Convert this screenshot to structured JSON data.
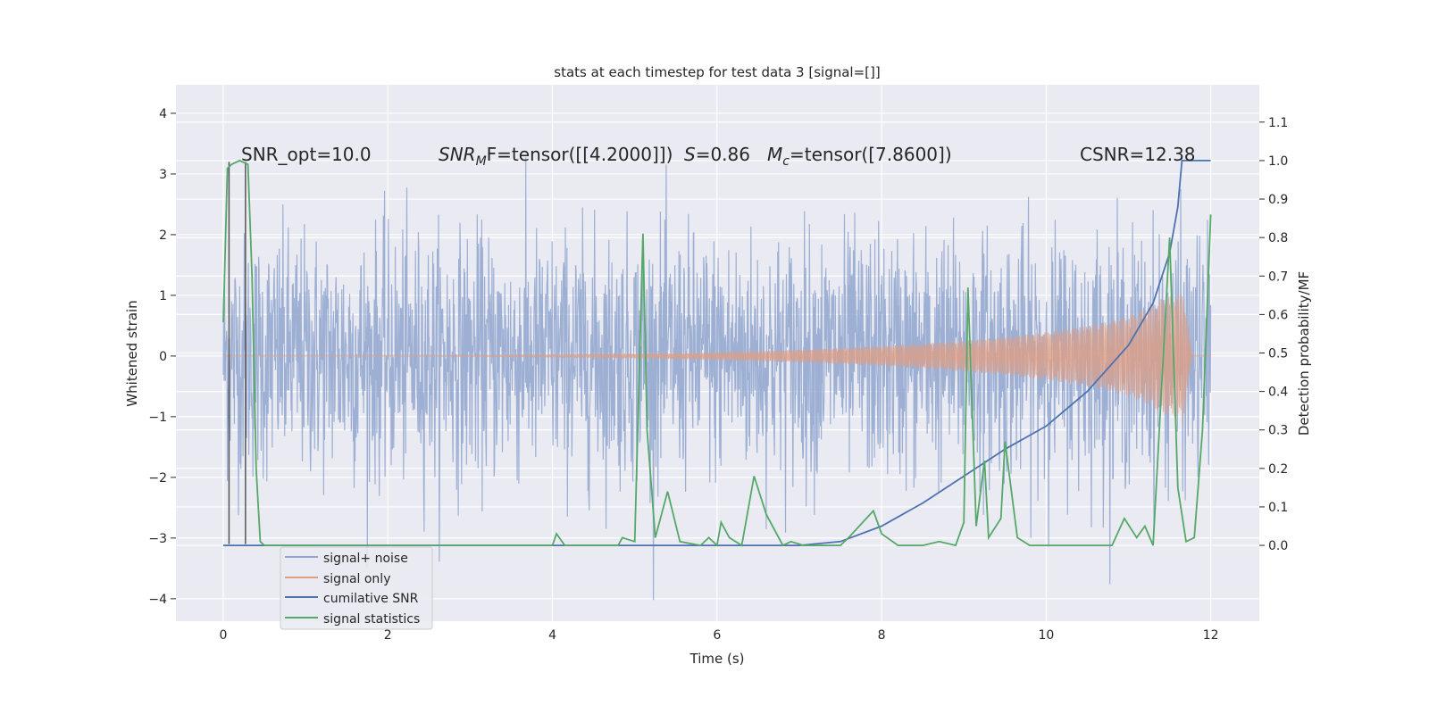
{
  "chart_data": {
    "type": "line",
    "title": "stats at each timestep for test data 3 [signal=[]]",
    "xlabel": "Time (s)",
    "ylabel": "Whitened strain",
    "y2label": "Detection probability/MF",
    "xlim": [
      -0.575,
      12.59
    ],
    "ylim": [
      -4.37,
      4.47
    ],
    "y2lim": [
      -0.197,
      1.197
    ],
    "xticks": [
      "0",
      "2",
      "4",
      "6",
      "8",
      "10",
      "12"
    ],
    "xtick_values": [
      0,
      2,
      4,
      6,
      8,
      10,
      12
    ],
    "yticks": [
      "−4",
      "−3",
      "−2",
      "−1",
      "0",
      "1",
      "2",
      "3",
      "4"
    ],
    "ytick_values": [
      -4,
      -3,
      -2,
      -1,
      0,
      1,
      2,
      3,
      4
    ],
    "y2ticks": [
      "0.0",
      "0.1",
      "0.2",
      "0.3",
      "0.4",
      "0.5",
      "0.6",
      "0.7",
      "0.8",
      "0.9",
      "1.0",
      "1.1"
    ],
    "y2tick_values": [
      0,
      0.1,
      0.2,
      0.3,
      0.4,
      0.5,
      0.6,
      0.7,
      0.8,
      0.9,
      1.0,
      1.1
    ],
    "grid": true,
    "annotations": {
      "snr_opt": "SNR_opt=10.0",
      "snr_mf_base": "SNR",
      "snr_mf_sub": "M",
      "snr_mf_rest": "F=tensor([[4.2000]])",
      "s_label": "S",
      "s_value": "=0.86",
      "mc_base": "M",
      "mc_sub": "c",
      "mc_rest": "=tensor([7.8600])",
      "csnr": "CSNR=12.38"
    },
    "legend": {
      "placement": "lower-left",
      "entries": [
        "signal+ noise",
        "signal only",
        "cumilative SNR",
        "signal statistics"
      ]
    },
    "series": [
      {
        "name": "signal+ noise",
        "axis": "left",
        "color": "#8fa6cf",
        "kind": "noise",
        "t_range": [
          0,
          12
        ],
        "sigma": 1.0,
        "clip": 4.1
      },
      {
        "name": "signal only",
        "axis": "left",
        "color": "#dd9e84",
        "kind": "chirp",
        "t_range": [
          0,
          12
        ],
        "peak_time": 11.65,
        "peak_amp": 1.2
      },
      {
        "name": "cumilative SNR",
        "axis": "right",
        "color": "#4c72b0",
        "x": [
          0,
          7,
          7.5,
          8,
          8.5,
          9,
          9.5,
          10,
          10.5,
          11,
          11.3,
          11.5,
          11.6,
          11.65,
          12
        ],
        "y": [
          0,
          0,
          0.01,
          0.05,
          0.11,
          0.18,
          0.25,
          0.31,
          0.4,
          0.52,
          0.63,
          0.76,
          0.88,
          1.0,
          1.0
        ]
      },
      {
        "name": "signal statistics",
        "axis": "right",
        "color": "#55a868",
        "x": [
          0,
          0.05,
          0.1,
          0.2,
          0.3,
          0.35,
          0.4,
          0.45,
          0.5,
          4.0,
          4.05,
          4.15,
          4.8,
          4.85,
          5.0,
          5.1,
          5.15,
          5.25,
          5.4,
          5.55,
          5.8,
          5.9,
          6.0,
          6.05,
          6.15,
          6.3,
          6.45,
          6.6,
          6.8,
          6.9,
          7.05,
          7.5,
          7.6,
          7.9,
          8.0,
          8.2,
          8.5,
          8.7,
          8.9,
          9.0,
          9.05,
          9.15,
          9.25,
          9.3,
          9.45,
          9.5,
          9.65,
          9.8,
          10.8,
          10.95,
          11.1,
          11.2,
          11.3,
          11.5,
          11.6,
          11.7,
          11.8,
          11.9,
          12.0
        ],
        "y": [
          0.58,
          0.98,
          0.99,
          1.0,
          0.99,
          0.7,
          0.2,
          0.01,
          0.0,
          0.0,
          0.03,
          0.0,
          0.0,
          0.02,
          0.01,
          0.81,
          0.3,
          0.02,
          0.14,
          0.01,
          0.0,
          0.02,
          0.0,
          0.06,
          0.02,
          0.0,
          0.18,
          0.08,
          0.0,
          0.01,
          0.0,
          0.0,
          0.02,
          0.09,
          0.03,
          0.0,
          0.0,
          0.01,
          0.0,
          0.06,
          0.67,
          0.05,
          0.22,
          0.02,
          0.07,
          0.27,
          0.02,
          0.0,
          0.0,
          0.07,
          0.02,
          0.05,
          0.0,
          0.8,
          0.15,
          0.01,
          0.02,
          0.3,
          0.86
        ]
      }
    ],
    "markers": {
      "name": "vertical lines",
      "color": "#555555",
      "x": [
        0.07,
        0.27
      ],
      "y_range": [
        -3.1,
        3.2
      ]
    }
  }
}
